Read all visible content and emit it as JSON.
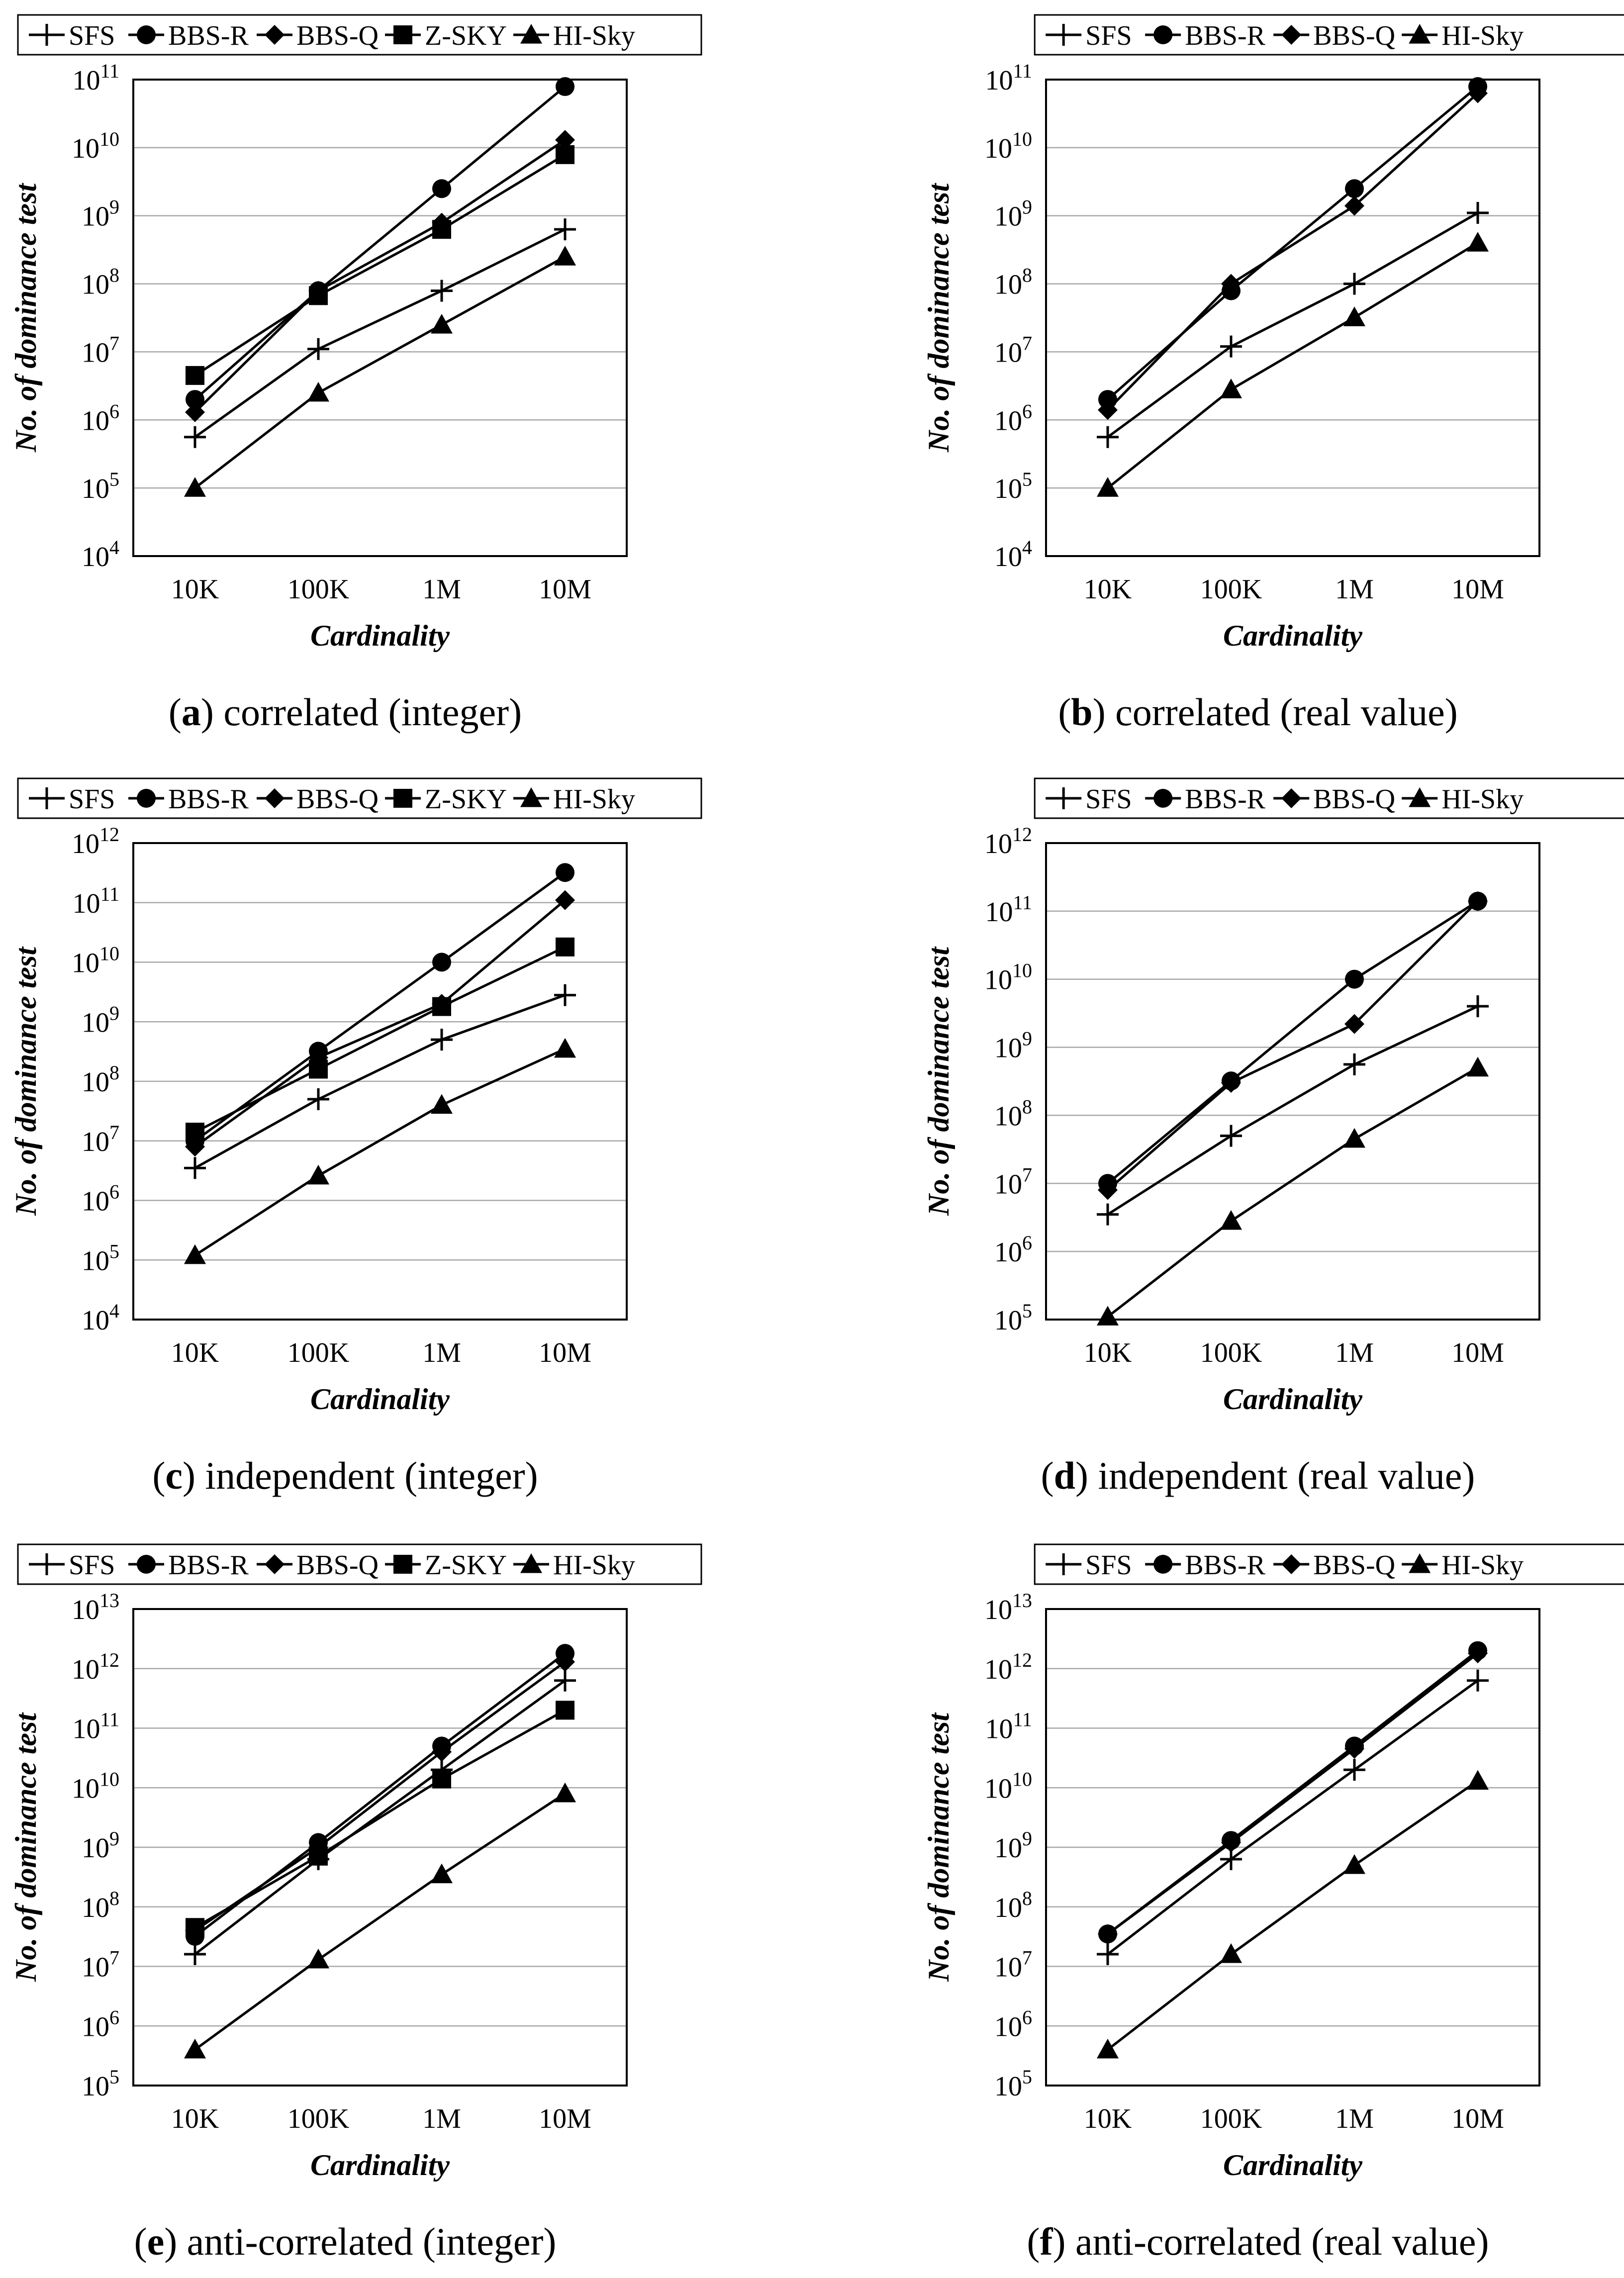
{
  "figure": {
    "series_styles": {
      "SFS": {
        "marker": "plus",
        "color": "#000000"
      },
      "BBS-R": {
        "marker": "circle",
        "color": "#000000"
      },
      "BBS-Q": {
        "marker": "diamond",
        "color": "#000000"
      },
      "Z-SKY": {
        "marker": "square",
        "color": "#000000"
      },
      "HI-Sky": {
        "marker": "triangle",
        "color": "#000000"
      }
    }
  },
  "chart_data": [
    {
      "id": "a",
      "type": "line",
      "yscale": "log",
      "title": "correlated (integer)",
      "caption_letter": "a",
      "xlabel": "Cardinality",
      "ylabel": "No. of dominance test",
      "categories": [
        "10K",
        "100K",
        "1M",
        "10M"
      ],
      "yexp_range": [
        4,
        11
      ],
      "ytick_labels": [
        "10^4",
        "10^5",
        "10^6",
        "10^7",
        "10^8",
        "10^9",
        "10^10",
        "10^11"
      ],
      "grid": true,
      "legend": "top",
      "series": [
        {
          "name": "SFS",
          "values": [
            560000.0,
            11000000.0,
            79000000.0,
            630000000.0
          ]
        },
        {
          "name": "BBS-R",
          "values": [
            2000000.0,
            79000000.0,
            2500000000.0,
            79000000000.0
          ]
        },
        {
          "name": "BBS-Q",
          "values": [
            1300000.0,
            79000000.0,
            790000000.0,
            13000000000.0
          ]
        },
        {
          "name": "Z-SKY",
          "values": [
            4500000.0,
            67000000.0,
            630000000.0,
            7900000000.0
          ]
        },
        {
          "name": "HI-Sky",
          "values": [
            100000.0,
            2500000.0,
            25000000.0,
            250000000.0
          ]
        }
      ]
    },
    {
      "id": "b",
      "type": "line",
      "yscale": "log",
      "title": "correlated (real value)",
      "caption_letter": "b",
      "xlabel": "Cardinality",
      "ylabel": "No. of dominance test",
      "categories": [
        "10K",
        "100K",
        "1M",
        "10M"
      ],
      "yexp_range": [
        4,
        11
      ],
      "ytick_labels": [
        "10^4",
        "10^5",
        "10^6",
        "10^7",
        "10^8",
        "10^9",
        "10^10",
        "10^11"
      ],
      "grid": true,
      "legend": "top",
      "series": [
        {
          "name": "SFS",
          "values": [
            560000.0,
            12000000.0,
            100000000.0,
            1100000000.0
          ]
        },
        {
          "name": "BBS-R",
          "values": [
            2000000.0,
            79000000.0,
            2500000000.0,
            79000000000.0
          ]
        },
        {
          "name": "BBS-Q",
          "values": [
            1400000.0,
            100000000.0,
            1400000000.0,
            63000000000.0
          ]
        },
        {
          "name": "HI-Sky",
          "values": [
            100000.0,
            2800000.0,
            32000000.0,
            400000000.0
          ]
        }
      ]
    },
    {
      "id": "c",
      "type": "line",
      "yscale": "log",
      "title": "independent (integer)",
      "caption_letter": "c",
      "xlabel": "Cardinality",
      "ylabel": "No. of dominance test",
      "categories": [
        "10K",
        "100K",
        "1M",
        "10M"
      ],
      "yexp_range": [
        4,
        12
      ],
      "ytick_labels": [
        "10^4",
        "10^5",
        "10^6",
        "10^7",
        "10^8",
        "10^9",
        "10^10",
        "10^11",
        "10^12"
      ],
      "grid": true,
      "legend": "top",
      "series": [
        {
          "name": "SFS",
          "values": [
            3500000.0,
            50000000.0,
            500000000.0,
            2800000000.0
          ]
        },
        {
          "name": "BBS-R",
          "values": [
            10000000.0,
            320000000.0,
            10000000000.0,
            320000000000.0
          ]
        },
        {
          "name": "BBS-Q",
          "values": [
            8000000.0,
            250000000.0,
            2000000000.0,
            110000000000.0
          ]
        },
        {
          "name": "Z-SKY",
          "values": [
            14000000.0,
            160000000.0,
            1800000000.0,
            18000000000.0
          ]
        },
        {
          "name": "HI-Sky",
          "values": [
            120000.0,
            2600000.0,
            40000000.0,
            350000000.0
          ]
        }
      ]
    },
    {
      "id": "d",
      "type": "line",
      "yscale": "log",
      "title": "independent (real value)",
      "caption_letter": "d",
      "xlabel": "Cardinality",
      "ylabel": "No. of dominance test",
      "categories": [
        "10K",
        "100K",
        "1M",
        "10M"
      ],
      "yexp_range": [
        5,
        12
      ],
      "ytick_labels": [
        "10^5",
        "10^6",
        "10^7",
        "10^8",
        "10^9",
        "10^10",
        "10^11",
        "10^12"
      ],
      "grid": true,
      "legend": "top",
      "series": [
        {
          "name": "SFS",
          "values": [
            3500000.0,
            50000000.0,
            560000000.0,
            4000000000.0
          ]
        },
        {
          "name": "BBS-R",
          "values": [
            10000000.0,
            320000000.0,
            10000000000.0,
            140000000000.0
          ]
        },
        {
          "name": "BBS-Q",
          "values": [
            8000000.0,
            300000000.0,
            2200000000.0,
            140000000000.0
          ]
        },
        {
          "name": "HI-Sky",
          "values": [
            110000.0,
            2800000.0,
            45000000.0,
            500000000.0
          ]
        }
      ]
    },
    {
      "id": "e",
      "type": "line",
      "yscale": "log",
      "title": "anti-correlated (integer)",
      "caption_letter": "e",
      "xlabel": "Cardinality",
      "ylabel": "No. of dominance test",
      "categories": [
        "10K",
        "100K",
        "1M",
        "10M"
      ],
      "yexp_range": [
        5,
        13
      ],
      "ytick_labels": [
        "10^5",
        "10^6",
        "10^7",
        "10^8",
        "10^9",
        "10^10",
        "10^11",
        "10^12",
        "10^13"
      ],
      "grid": true,
      "legend": "top",
      "series": [
        {
          "name": "SFS",
          "values": [
            16000000.0,
            630000000.0,
            20000000000.0,
            630000000000.0
          ]
        },
        {
          "name": "BBS-R",
          "values": [
            32000000.0,
            1200000000.0,
            50000000000.0,
            1800000000000.0
          ]
        },
        {
          "name": "BBS-Q",
          "values": [
            40000000.0,
            1000000000.0,
            40000000000.0,
            1300000000000.0
          ]
        },
        {
          "name": "Z-SKY",
          "values": [
            45000000.0,
            710000000.0,
            14000000000.0,
            200000000000.0
          ]
        },
        {
          "name": "HI-Sky",
          "values": [
            400000.0,
            13000000.0,
            350000000.0,
            8000000000.0
          ]
        }
      ]
    },
    {
      "id": "f",
      "type": "line",
      "yscale": "log",
      "title": "anti-correlated (real value)",
      "caption_letter": "f",
      "xlabel": "Cardinality",
      "ylabel": "No. of dominance test",
      "categories": [
        "10K",
        "100K",
        "1M",
        "10M"
      ],
      "yexp_range": [
        5,
        13
      ],
      "ytick_labels": [
        "10^5",
        "10^6",
        "10^7",
        "10^8",
        "10^9",
        "10^10",
        "10^11",
        "10^12",
        "10^13"
      ],
      "grid": true,
      "legend": "top",
      "series": [
        {
          "name": "SFS",
          "values": [
            16000000.0,
            630000000.0,
            20000000000.0,
            630000000000.0
          ]
        },
        {
          "name": "BBS-R",
          "values": [
            35000000.0,
            1300000000.0,
            50000000000.0,
            2000000000000.0
          ]
        },
        {
          "name": "BBS-Q",
          "values": [
            35000000.0,
            1200000000.0,
            45000000000.0,
            1800000000000.0
          ]
        },
        {
          "name": "HI-Sky",
          "values": [
            400000.0,
            16000000.0,
            500000000.0,
            13000000000.0
          ]
        }
      ]
    }
  ]
}
